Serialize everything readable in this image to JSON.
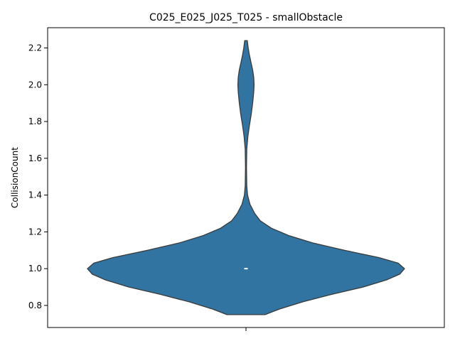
{
  "chart_data": {
    "type": "violin",
    "title": "C025_E025_J025_T025 - smallObstacle",
    "xlabel": "",
    "ylabel": "CollisionCount",
    "ylim": [
      0.68,
      2.31
    ],
    "yticks": [
      0.8,
      1.0,
      1.2,
      1.4,
      1.6,
      1.8,
      2.0,
      2.2
    ],
    "ytick_labels": [
      "0.8",
      "1.0",
      "1.2",
      "1.4",
      "1.6",
      "1.8",
      "2.0",
      "2.2"
    ],
    "categories": [
      ""
    ],
    "color": "#3274a1",
    "edge_color": "#3a3a3a",
    "median": 1.0,
    "profile_range": [
      0.75,
      2.24
    ],
    "profile": [
      [
        0.75,
        0.12
      ],
      [
        0.78,
        0.21
      ],
      [
        0.82,
        0.36
      ],
      [
        0.86,
        0.54
      ],
      [
        0.9,
        0.74
      ],
      [
        0.94,
        0.89
      ],
      [
        0.97,
        0.97
      ],
      [
        1.0,
        1.0
      ],
      [
        1.03,
        0.96
      ],
      [
        1.06,
        0.84
      ],
      [
        1.1,
        0.62
      ],
      [
        1.14,
        0.42
      ],
      [
        1.18,
        0.27
      ],
      [
        1.22,
        0.16
      ],
      [
        1.26,
        0.09
      ],
      [
        1.3,
        0.055
      ],
      [
        1.35,
        0.025
      ],
      [
        1.4,
        0.01
      ],
      [
        1.45,
        0.005
      ],
      [
        1.55,
        0.003
      ],
      [
        1.65,
        0.005
      ],
      [
        1.72,
        0.012
      ],
      [
        1.78,
        0.022
      ],
      [
        1.84,
        0.033
      ],
      [
        1.9,
        0.042
      ],
      [
        1.96,
        0.049
      ],
      [
        2.0,
        0.051
      ],
      [
        2.04,
        0.049
      ],
      [
        2.08,
        0.042
      ],
      [
        2.12,
        0.032
      ],
      [
        2.16,
        0.022
      ],
      [
        2.2,
        0.014
      ],
      [
        2.24,
        0.008
      ]
    ]
  }
}
